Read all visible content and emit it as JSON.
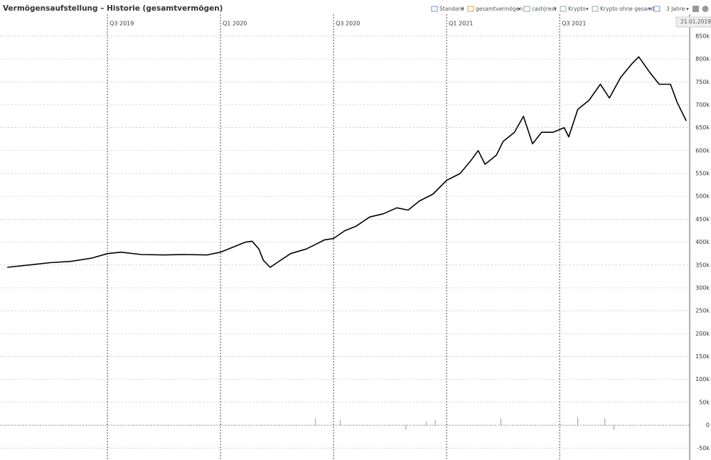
{
  "header": {
    "title": "Vermögensaufstellung – Historie (gesamtvermögen)",
    "menu": [
      "Standard",
      "gesamtvermögen",
      "cash|rest",
      "Krypto",
      "Krypto ohne gesamt",
      "3 Jahre"
    ],
    "tooltip": "21.01.2019 –"
  },
  "chart_data": {
    "type": "line",
    "xlim": [
      2019.025,
      2022.075
    ],
    "xticks": [
      {
        "value": 2019.5,
        "label": "Q3 2019"
      },
      {
        "value": 2020.0,
        "label": "Q1 2020"
      },
      {
        "value": 2020.5,
        "label": "Q3 2020"
      },
      {
        "value": 2021.0,
        "label": "Q1 2021"
      },
      {
        "value": 2021.5,
        "label": "Q3 2021"
      }
    ],
    "ylim": [
      -76000,
      898000
    ],
    "yticks": [
      {
        "value": 850000,
        "label": "850k"
      },
      {
        "value": 800000,
        "label": "800k"
      },
      {
        "value": 750000,
        "label": "750k"
      },
      {
        "value": 700000,
        "label": "700k"
      },
      {
        "value": 650000,
        "label": "650k"
      },
      {
        "value": 600000,
        "label": "600k"
      },
      {
        "value": 550000,
        "label": "550k"
      },
      {
        "value": 500000,
        "label": "500k"
      },
      {
        "value": 450000,
        "label": "450k"
      },
      {
        "value": 400000,
        "label": "400k"
      },
      {
        "value": 350000,
        "label": "350k"
      },
      {
        "value": 300000,
        "label": "300k"
      },
      {
        "value": 250000,
        "label": "250k"
      },
      {
        "value": 200000,
        "label": "200k"
      },
      {
        "value": 150000,
        "label": "150k"
      },
      {
        "value": 100000,
        "label": "100k"
      },
      {
        "value": 50000,
        "label": "50k"
      },
      0,
      {
        "value": -50000,
        "label": "-50k"
      }
    ],
    "grid": true,
    "line": {
      "color": "#000000",
      "x": [
        2019.057,
        2019.15,
        2019.245,
        2019.34,
        2019.43,
        2019.5,
        2019.56,
        2019.65,
        2019.75,
        2019.84,
        2019.94,
        2020.0,
        2020.06,
        2020.11,
        2020.14,
        2020.17,
        2020.19,
        2020.22,
        2020.25,
        2020.31,
        2020.38,
        2020.42,
        2020.46,
        2020.5,
        2020.55,
        2020.6,
        2020.66,
        2020.72,
        2020.78,
        2020.83,
        2020.88,
        2020.94,
        2021.0,
        2021.06,
        2021.11,
        2021.14,
        2021.17,
        2021.22,
        2021.25,
        2021.3,
        2021.34,
        2021.38,
        2021.42,
        2021.47,
        2021.52,
        2021.54,
        2021.58,
        2021.63,
        2021.68,
        2021.72,
        2021.77,
        2021.82,
        2021.85,
        2021.9,
        2021.94,
        2021.99,
        2022.02,
        2022.06
      ],
      "values": [
        345000,
        350000,
        355000,
        358000,
        365000,
        375000,
        378000,
        373000,
        372000,
        373000,
        372000,
        378000,
        390000,
        400000,
        402000,
        385000,
        360000,
        345000,
        355000,
        375000,
        385000,
        395000,
        405000,
        408000,
        425000,
        435000,
        455000,
        462000,
        475000,
        470000,
        490000,
        505000,
        535000,
        550000,
        580000,
        600000,
        570000,
        590000,
        620000,
        640000,
        675000,
        615000,
        640000,
        640000,
        650000,
        630000,
        690000,
        710000,
        745000,
        715000,
        760000,
        790000,
        805000,
        770000,
        745000,
        745000,
        705000,
        665000
      ]
    },
    "bars": {
      "color": "#999999",
      "x": [
        2020.42,
        2020.53,
        2020.82,
        2020.91,
        2020.95,
        2021.24,
        2021.58,
        2021.7,
        2021.74
      ],
      "values": [
        15000,
        12000,
        -10000,
        8000,
        12000,
        15000,
        18000,
        15000,
        -10000
      ]
    }
  }
}
